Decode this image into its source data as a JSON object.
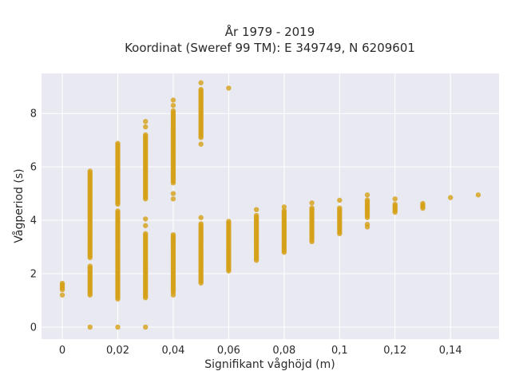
{
  "chart_data": {
    "type": "scatter",
    "title_line1": "År 1979 - 2019",
    "title_line2": "Koordinat (Sweref 99 TM): E 349749, N 6209601",
    "xlabel": "Signifikant våghöjd (m)",
    "ylabel": "Vågperiod (s)",
    "xlim": [
      -0.0075,
      0.1575
    ],
    "ylim": [
      -0.45,
      9.5
    ],
    "x_ticks": [
      0,
      0.02,
      0.04,
      0.06,
      0.08,
      0.1,
      0.12,
      0.14
    ],
    "x_tick_labels": [
      "0",
      "0,02",
      "0,04",
      "0,06",
      "0,08",
      "0,1",
      "0,12",
      "0,14"
    ],
    "y_ticks": [
      0,
      2,
      4,
      6,
      8
    ],
    "y_tick_labels": [
      "0",
      "2",
      "4",
      "6",
      "8"
    ],
    "grid": true,
    "colors": {
      "marker": "#D4A017",
      "plot_bg": "#E9E9F1",
      "grid": "#ffffff"
    },
    "columns": [
      {
        "x": 0,
        "segments": [
          [
            1.4,
            1.65
          ]
        ],
        "points": [
          1.2
        ]
      },
      {
        "x": 0.01,
        "segments": [
          [
            1.2,
            2.3
          ],
          [
            2.6,
            5.85
          ]
        ],
        "points": [
          0
        ]
      },
      {
        "x": 0.02,
        "segments": [
          [
            1.05,
            4.4
          ],
          [
            4.6,
            6.9
          ]
        ],
        "points": [
          0
        ]
      },
      {
        "x": 0.03,
        "segments": [
          [
            1.1,
            3.5
          ],
          [
            4.8,
            7.2
          ]
        ],
        "points": [
          0,
          3.8,
          4.05,
          7.5,
          7.7
        ]
      },
      {
        "x": 0.04,
        "segments": [
          [
            1.3,
            3.5
          ],
          [
            5.4,
            8.1
          ]
        ],
        "points": [
          1.2,
          4.8,
          5.0,
          8.3,
          8.5
        ]
      },
      {
        "x": 0.05,
        "segments": [
          [
            1.65,
            3.9
          ],
          [
            7.1,
            8.9
          ]
        ],
        "points": [
          4.1,
          6.85,
          9.15
        ]
      },
      {
        "x": 0.06,
        "segments": [
          [
            2.1,
            4.0
          ]
        ],
        "points": [
          8.95
        ]
      },
      {
        "x": 0.07,
        "segments": [
          [
            2.5,
            4.2
          ]
        ],
        "points": [
          4.4
        ]
      },
      {
        "x": 0.08,
        "segments": [
          [
            2.8,
            4.4
          ]
        ],
        "points": [
          4.5
        ]
      },
      {
        "x": 0.09,
        "segments": [
          [
            3.2,
            4.5
          ]
        ],
        "points": [
          4.65
        ]
      },
      {
        "x": 0.1,
        "segments": [
          [
            3.5,
            4.5
          ]
        ],
        "points": [
          4.75
        ]
      },
      {
        "x": 0.11,
        "segments": [
          [
            4.1,
            4.8
          ]
        ],
        "points": [
          3.75,
          3.85,
          4.95
        ]
      },
      {
        "x": 0.12,
        "segments": [
          [
            4.3,
            4.6
          ]
        ],
        "points": [
          4.8
        ]
      },
      {
        "x": 0.13,
        "segments": [
          [
            4.45,
            4.65
          ]
        ],
        "points": []
      },
      {
        "x": 0.14,
        "segments": [],
        "points": [
          4.85
        ]
      },
      {
        "x": 0.15,
        "segments": [],
        "points": [
          4.95
        ]
      }
    ]
  }
}
